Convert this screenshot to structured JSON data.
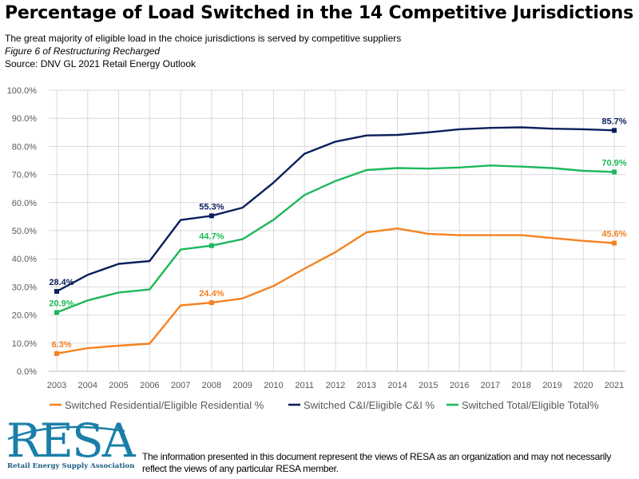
{
  "header": {
    "title": "Percentage of Load Switched in the 14 Competitive Jurisdictions",
    "subtitle": "The great majority of eligible load in the choice jurisdictions is served by competitive suppliers",
    "figure_ref": "Figure 6 of Restructuring Recharged",
    "source": "Source: DNV GL 2021 Retail Energy Outlook"
  },
  "footer": {
    "logo_text": "RESA",
    "logo_caption": "Retail Energy Supply Association",
    "disclaimer": "The information presented in this document represent the views of RESA as an organization and may not necessarily reflect the views of any particular RESA member."
  },
  "colors": {
    "residential": "#F58220",
    "ci": "#0B1F5C",
    "total": "#1DB85A",
    "logo": "#1A7FA8",
    "grid": "#D9D9D9"
  },
  "chart_data": {
    "type": "line",
    "x": [
      "2003",
      "2004",
      "2005",
      "2006",
      "2007",
      "2008",
      "2009",
      "2010",
      "2011",
      "2012",
      "2013",
      "2014",
      "2015",
      "2016",
      "2017",
      "2018",
      "2019",
      "2020",
      "2021"
    ],
    "ylim": [
      0,
      100
    ],
    "yticks": [
      "0.0%",
      "10.0%",
      "20.0%",
      "30.0%",
      "40.0%",
      "50.0%",
      "60.0%",
      "70.0%",
      "80.0%",
      "90.0%",
      "100.0%"
    ],
    "grid": true,
    "legend_position": "bottom",
    "series": [
      {
        "key": "residential",
        "name": "Switched Residential/Eligible Residential %",
        "values": [
          6.3,
          8.2,
          9.1,
          9.8,
          23.4,
          24.4,
          25.9,
          30.3,
          36.5,
          42.4,
          49.4,
          50.8,
          48.9,
          48.4,
          48.4,
          48.4,
          47.4,
          46.4,
          45.6
        ],
        "labels": [
          {
            "index": 0,
            "text": "6.3%"
          },
          {
            "index": 5,
            "text": "24.4%"
          },
          {
            "index": 18,
            "text": "45.6%"
          }
        ]
      },
      {
        "key": "ci",
        "name": "Switched C&I/Eligible C&I %",
        "values": [
          28.4,
          34.3,
          38.2,
          39.2,
          53.8,
          55.3,
          58.2,
          67.1,
          77.4,
          81.7,
          83.9,
          84.1,
          85.0,
          86.1,
          86.6,
          86.8,
          86.3,
          86.1,
          85.7
        ],
        "labels": [
          {
            "index": 0,
            "text": "28.4%"
          },
          {
            "index": 5,
            "text": "55.3%"
          },
          {
            "index": 18,
            "text": "85.7%"
          }
        ]
      },
      {
        "key": "total",
        "name": "Switched Total/Eligible Total%",
        "values": [
          20.9,
          25.2,
          28.0,
          29.1,
          43.3,
          44.7,
          47.0,
          53.9,
          62.7,
          67.7,
          71.6,
          72.3,
          72.1,
          72.5,
          73.2,
          72.8,
          72.3,
          71.3,
          70.9
        ],
        "labels": [
          {
            "index": 0,
            "text": "20.9%"
          },
          {
            "index": 5,
            "text": "44.7%"
          },
          {
            "index": 18,
            "text": "70.9%"
          }
        ]
      }
    ]
  }
}
